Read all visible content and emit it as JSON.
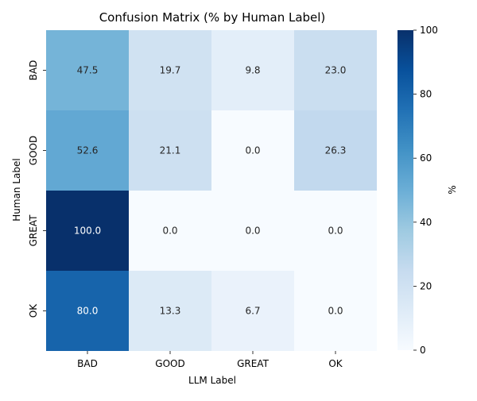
{
  "chart_data": {
    "type": "heatmap",
    "title": "Confusion Matrix (% by Human Label)",
    "xlabel": "LLM Label",
    "ylabel": "Human Label",
    "x_categories": [
      "BAD",
      "GOOD",
      "GREAT",
      "OK"
    ],
    "y_categories": [
      "BAD",
      "GOOD",
      "GREAT",
      "OK"
    ],
    "values": [
      [
        47.5,
        19.7,
        9.8,
        23.0
      ],
      [
        52.6,
        21.1,
        0.0,
        26.3
      ],
      [
        100.0,
        0.0,
        0.0,
        0.0
      ],
      [
        80.0,
        13.3,
        6.7,
        0.0
      ]
    ],
    "value_format": "0.1f",
    "colormap": "Blues",
    "vmin": 0,
    "vmax": 100,
    "colorbar": {
      "label": "%",
      "ticks": [
        0,
        20,
        40,
        60,
        80,
        100
      ]
    }
  }
}
